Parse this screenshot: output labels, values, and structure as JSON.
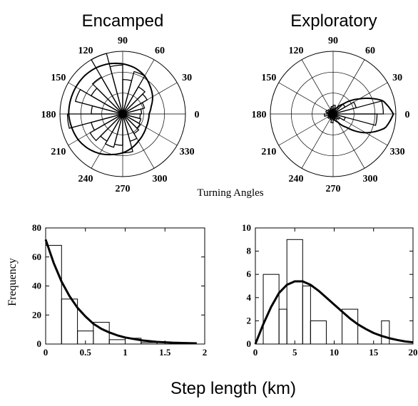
{
  "figure": {
    "middle_label": "Turning Angles",
    "bottom_xlabel": "Step length (km)"
  },
  "chart_data": [
    {
      "type": "polar-rose",
      "title": "Encamped",
      "angle_labels": [
        "0",
        "30",
        "60",
        "90",
        "120",
        "150",
        "180",
        "210",
        "240",
        "270",
        "300",
        "330"
      ],
      "bins_deg": [
        [
          0,
          15
        ],
        [
          15,
          30
        ],
        [
          30,
          45
        ],
        [
          45,
          60
        ],
        [
          60,
          75
        ],
        [
          75,
          90
        ],
        [
          90,
          105
        ],
        [
          105,
          120
        ],
        [
          120,
          135
        ],
        [
          135,
          150
        ],
        [
          150,
          165
        ],
        [
          165,
          180
        ],
        [
          180,
          195
        ],
        [
          195,
          210
        ],
        [
          210,
          225
        ],
        [
          225,
          240
        ],
        [
          240,
          255
        ],
        [
          255,
          270
        ],
        [
          270,
          285
        ],
        [
          285,
          300
        ],
        [
          300,
          315
        ],
        [
          315,
          330
        ],
        [
          330,
          345
        ],
        [
          345,
          360
        ]
      ],
      "bin_values": [
        0.3,
        0.36,
        0.45,
        0.5,
        0.7,
        0.55,
        0.78,
        1.0,
        0.68,
        0.58,
        0.78,
        0.5,
        0.88,
        0.52,
        0.6,
        0.5,
        0.55,
        0.5,
        0.62,
        0.45,
        0.36,
        0.32,
        0.3,
        0.28
      ],
      "density_curve": {
        "angles_deg": [
          0,
          15,
          30,
          45,
          60,
          75,
          90,
          105,
          120,
          135,
          150,
          165,
          180,
          195,
          210,
          225,
          240,
          255,
          270,
          285,
          300,
          315,
          330,
          345
        ],
        "values": [
          0.42,
          0.47,
          0.55,
          0.62,
          0.7,
          0.76,
          0.8,
          0.83,
          0.85,
          0.86,
          0.86,
          0.86,
          0.86,
          0.84,
          0.82,
          0.78,
          0.73,
          0.67,
          0.62,
          0.56,
          0.5,
          0.46,
          0.43,
          0.42
        ]
      },
      "rings": 3
    },
    {
      "type": "polar-rose",
      "title": "Exploratory",
      "angle_labels": [
        "0",
        "30",
        "60",
        "90",
        "120",
        "150",
        "180",
        "210",
        "240",
        "270",
        "300",
        "330"
      ],
      "bins_deg": [
        [
          0,
          15
        ],
        [
          15,
          30
        ],
        [
          30,
          45
        ],
        [
          45,
          60
        ],
        [
          60,
          75
        ],
        [
          75,
          90
        ],
        [
          90,
          105
        ],
        [
          105,
          120
        ],
        [
          120,
          135
        ],
        [
          135,
          150
        ],
        [
          150,
          165
        ],
        [
          165,
          180
        ],
        [
          180,
          195
        ],
        [
          195,
          210
        ],
        [
          210,
          225
        ],
        [
          225,
          240
        ],
        [
          240,
          255
        ],
        [
          255,
          270
        ],
        [
          270,
          285
        ],
        [
          285,
          300
        ],
        [
          300,
          315
        ],
        [
          315,
          330
        ],
        [
          330,
          345
        ],
        [
          345,
          360
        ]
      ],
      "bin_values": [
        0.8,
        0.38,
        0.22,
        0.12,
        0.1,
        0.14,
        0.12,
        0.1,
        0.08,
        0.1,
        0.12,
        0.1,
        0.14,
        0.08,
        0.1,
        0.08,
        0.1,
        0.14,
        0.1,
        0.08,
        0.1,
        0.12,
        0.2,
        0.7
      ],
      "density_curve": {
        "angles_deg": [
          0,
          15,
          30,
          45,
          60,
          75,
          90,
          105,
          120,
          135,
          150,
          165,
          180,
          195,
          210,
          225,
          240,
          255,
          270,
          285,
          300,
          315,
          330,
          345
        ],
        "values": [
          0.96,
          0.82,
          0.48,
          0.22,
          0.11,
          0.08,
          0.07,
          0.07,
          0.07,
          0.07,
          0.07,
          0.07,
          0.07,
          0.07,
          0.07,
          0.07,
          0.07,
          0.07,
          0.08,
          0.1,
          0.15,
          0.3,
          0.6,
          0.86
        ]
      },
      "rings": 3
    },
    {
      "type": "bar",
      "ylabel": "Frequency",
      "xlim": [
        0,
        2
      ],
      "ylim": [
        0,
        80
      ],
      "xticks": [
        "0",
        "0.5",
        "1",
        "1.5",
        "2"
      ],
      "yticks": [
        "0",
        "20",
        "40",
        "60",
        "80"
      ],
      "bin_edges": [
        0,
        0.2,
        0.4,
        0.6,
        0.8,
        1.0,
        1.2,
        1.4,
        1.6,
        1.8,
        2.0
      ],
      "values": [
        68,
        31,
        9,
        15,
        3,
        4,
        1,
        1,
        1,
        0
      ],
      "fit_curve": {
        "x": [
          0,
          0.1,
          0.2,
          0.3,
          0.4,
          0.5,
          0.6,
          0.7,
          0.8,
          0.9,
          1.0,
          1.2,
          1.4,
          1.6,
          1.8,
          1.9
        ],
        "y": [
          72,
          56,
          43,
          33,
          25,
          19,
          14,
          10.5,
          8,
          6,
          4.5,
          2.6,
          1.5,
          0.9,
          0.6,
          0.5
        ]
      }
    },
    {
      "type": "bar",
      "xlim": [
        0,
        20
      ],
      "ylim": [
        0,
        10
      ],
      "xticks": [
        "0",
        "5",
        "10",
        "15",
        "20"
      ],
      "yticks": [
        "0",
        "2",
        "4",
        "6",
        "8",
        "10"
      ],
      "bin_edges": [
        0,
        1,
        3,
        4,
        6,
        7,
        9,
        10,
        11,
        13,
        14,
        16,
        17,
        19,
        20
      ],
      "values": [
        0,
        6,
        3,
        9,
        5,
        2,
        0,
        0,
        3,
        0,
        0,
        2,
        0,
        0
      ],
      "fit_curve": {
        "x": [
          0,
          1,
          2,
          3,
          4,
          5,
          6,
          7,
          8,
          9,
          10,
          11,
          12,
          13,
          14,
          15,
          16,
          17,
          18,
          19,
          20
        ],
        "y": [
          0,
          1.7,
          3.2,
          4.4,
          5.1,
          5.4,
          5.4,
          5.1,
          4.6,
          4.0,
          3.4,
          2.8,
          2.2,
          1.7,
          1.3,
          0.95,
          0.7,
          0.5,
          0.35,
          0.22,
          0.15
        ]
      }
    }
  ]
}
